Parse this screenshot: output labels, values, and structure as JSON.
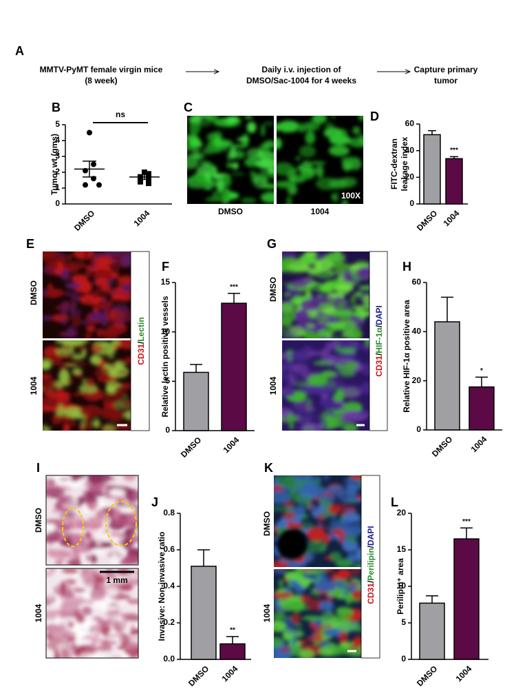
{
  "flow": {
    "panel": "A",
    "steps": [
      [
        "MMTV-PyMT female virgin mice",
        "(8 week)"
      ],
      [
        "Daily i.v. injection of",
        "DMSO/Sac-1004 for 4 weeks"
      ],
      [
        "Capture primary",
        "tumor"
      ]
    ]
  },
  "image_panels": [
    {
      "panel": "C",
      "labels": [
        "DMSO",
        "1004"
      ],
      "magnification": "100X"
    },
    {
      "panel": "E",
      "labels": [
        "DMSO",
        "1004"
      ],
      "stain": [
        {
          "text": "CD31",
          "color": "#cc1111"
        },
        {
          "text": "/",
          "color": "#000000"
        },
        {
          "text": "Lectin",
          "color": "#2a8a2a"
        }
      ]
    },
    {
      "panel": "G",
      "labels": [
        "DMSO",
        "1004"
      ],
      "stain": [
        {
          "text": "CD31",
          "color": "#cc1111"
        },
        {
          "text": "/",
          "color": "#000000"
        },
        {
          "text": "HIF-1α",
          "color": "#2a8a2a"
        },
        {
          "text": "/",
          "color": "#000000"
        },
        {
          "text": "DAPI",
          "color": "#1a1a9a"
        }
      ]
    },
    {
      "panel": "I",
      "labels": [
        "DMSO",
        "1004"
      ],
      "scale": "1 mm"
    },
    {
      "panel": "K",
      "labels": [
        "DMSO",
        "1004"
      ],
      "stain": [
        {
          "text": "CD31",
          "color": "#cc1111"
        },
        {
          "text": "/",
          "color": "#000000"
        },
        {
          "text": "Perilipin",
          "color": "#2a8a2a"
        },
        {
          "text": "/",
          "color": "#000000"
        },
        {
          "text": "DAPI",
          "color": "#1a1a9a"
        }
      ]
    }
  ],
  "chart_data": [
    {
      "type": "dot",
      "panel": "B",
      "ylabel": [
        "Tumor wt (gms)"
      ],
      "categories": [
        "DMSO",
        "1004"
      ],
      "points": [
        [
          4.5,
          2.5,
          2.1,
          1.6,
          1.2,
          1.2
        ],
        [
          2.0,
          1.9,
          1.7,
          1.6,
          1.4,
          1.3
        ]
      ],
      "means": [
        2.2,
        1.7
      ],
      "errors": [
        0.5,
        0.15
      ],
      "color": "#000000",
      "significance": "ns",
      "ylim": [
        0,
        5
      ],
      "yticks": [
        0,
        1,
        2,
        3,
        4,
        5
      ]
    },
    {
      "type": "bar",
      "panel": "D",
      "ylabel": [
        "FITC-dextran",
        "leakage index"
      ],
      "categories": [
        "DMSO",
        "1004"
      ],
      "values": [
        52,
        34
      ],
      "errors": [
        3,
        1.5
      ],
      "colors": [
        "#a0a0a4",
        "#5c0a45"
      ],
      "significance": "***",
      "ylim": [
        0,
        60
      ],
      "yticks": [
        0,
        20,
        40,
        60
      ]
    },
    {
      "type": "bar",
      "panel": "F",
      "ylabel": [
        "Relative lectin positive vessels"
      ],
      "categories": [
        "DMSO",
        "1004"
      ],
      "values": [
        5.9,
        12.9
      ],
      "errors": [
        0.8,
        1.0
      ],
      "colors": [
        "#a0a0a4",
        "#5c0a45"
      ],
      "significance": "***",
      "ylim": [
        0,
        15
      ],
      "yticks": [
        0,
        5,
        10,
        15
      ]
    },
    {
      "type": "bar",
      "panel": "H",
      "ylabel": [
        "Relative HIF-1α positive area"
      ],
      "categories": [
        "DMSO",
        "1004"
      ],
      "values": [
        44,
        17.5
      ],
      "errors": [
        10,
        4
      ],
      "colors": [
        "#a0a0a4",
        "#5c0a45"
      ],
      "significance": "*",
      "ylim": [
        0,
        60
      ],
      "yticks": [
        0,
        20,
        40,
        60
      ]
    },
    {
      "type": "bar",
      "panel": "J",
      "ylabel": [
        "Invasive: Non-invasive ratio"
      ],
      "categories": [
        "DMSO",
        "1004"
      ],
      "values": [
        0.51,
        0.085
      ],
      "errors": [
        0.09,
        0.04
      ],
      "colors": [
        "#a0a0a4",
        "#5c0a45"
      ],
      "significance": "**",
      "ylim": [
        0,
        0.8
      ],
      "yticks": [
        {
          "value": 0,
          "label": "0.0"
        },
        0.2,
        0.4,
        0.6,
        0.8
      ]
    },
    {
      "type": "bar",
      "panel": "L",
      "ylabel": [
        "Perilipin⁺ area"
      ],
      "categories": [
        "DMSO",
        "1004"
      ],
      "values": [
        7.7,
        16.5
      ],
      "errors": [
        1.0,
        1.5
      ],
      "colors": [
        "#a0a0a4",
        "#5c0a45"
      ],
      "significance": "***",
      "ylim": [
        0,
        20
      ],
      "yticks": [
        0,
        5,
        10,
        15,
        20
      ]
    }
  ]
}
